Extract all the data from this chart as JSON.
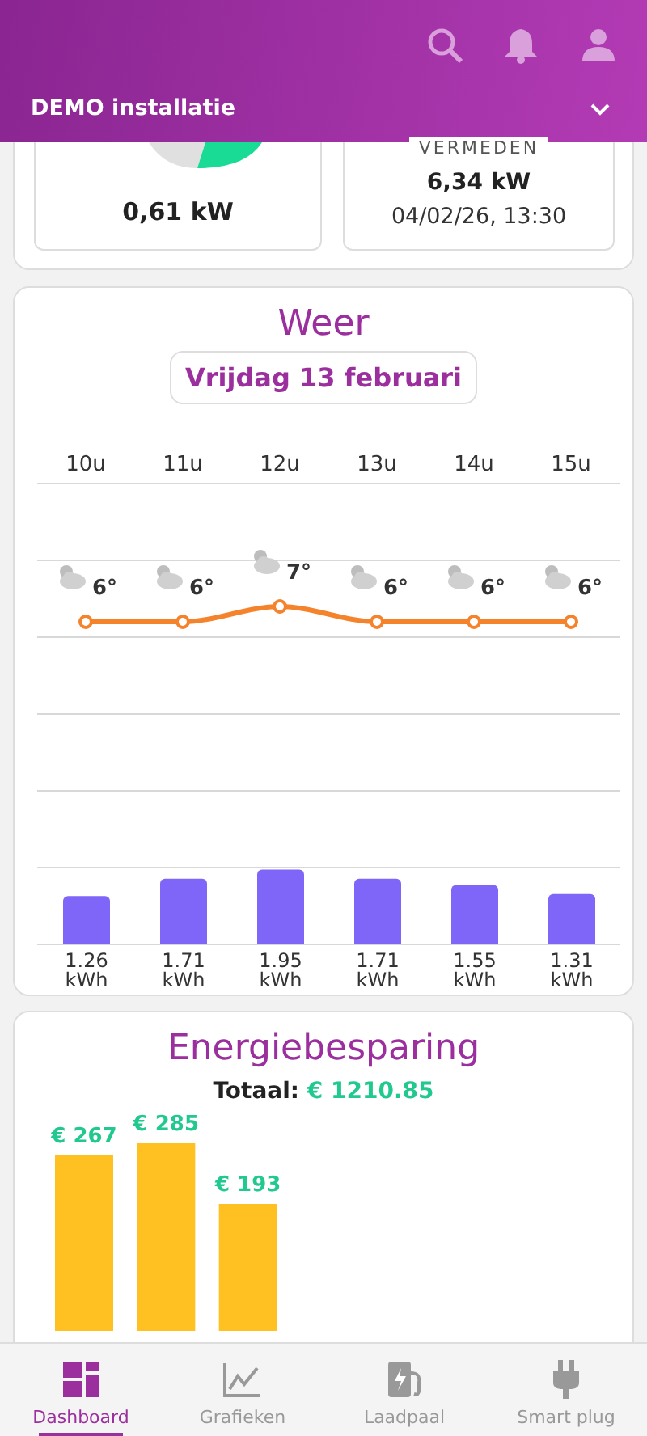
{
  "chart_data": [
    {
      "type": "other",
      "annotations": [
        "DEMO installatie",
        "0,61 kW",
        "VERMEDEN",
        "6,34 kW",
        "04/02/26, 13:30",
        "Dashboard",
        "Grafieken",
        "Laadpaal",
        "Smart plug"
      ]
    },
    {
      "type": "bar",
      "title": "Weer",
      "subtitle": "Vrijdag 13 februari",
      "categories": [
        "10u",
        "11u",
        "12u",
        "13u",
        "14u",
        "15u"
      ],
      "ylim": [
        0,
        12
      ],
      "yticks": [
        {
          "value": 0,
          "label": null
        },
        {
          "value": 2,
          "label": null
        },
        {
          "value": 4,
          "label": null
        },
        {
          "value": 6,
          "label": null
        },
        {
          "value": 8,
          "label": null
        },
        {
          "value": 10,
          "label": null
        },
        {
          "value": 12,
          "label": null
        }
      ],
      "y2lim": [
        -15,
        15
      ],
      "grid": "y",
      "tick_labels": "x",
      "series": [
        {
          "type": "bar",
          "color": "#8066f8",
          "values": [
            1.26,
            1.71,
            1.95,
            1.71,
            1.55,
            1.31
          ],
          "value_labels": [
            "1.26 kWh",
            "1.71 kWh",
            "1.95 kWh",
            "1.71 kWh",
            "1.55 kWh",
            "1.31 kWh"
          ]
        },
        {
          "type": "line",
          "axis": "y2",
          "color": "#f5832b",
          "marker": "circle",
          "values": [
            6,
            6,
            7,
            6,
            6,
            6
          ],
          "value_labels": [
            "6°",
            "6°",
            "7°",
            "6°",
            "6°",
            "6°"
          ]
        }
      ]
    },
    {
      "type": "bar",
      "title": "Energiebesparing",
      "subtitle": "Totaal: € 1210.85",
      "categories": [
        null,
        null,
        null
      ],
      "values": [
        267,
        285,
        193
      ],
      "color": "#ffc021",
      "value_labels": [
        "€ 267",
        "€ 285",
        "€ 193"
      ]
    }
  ]
}
